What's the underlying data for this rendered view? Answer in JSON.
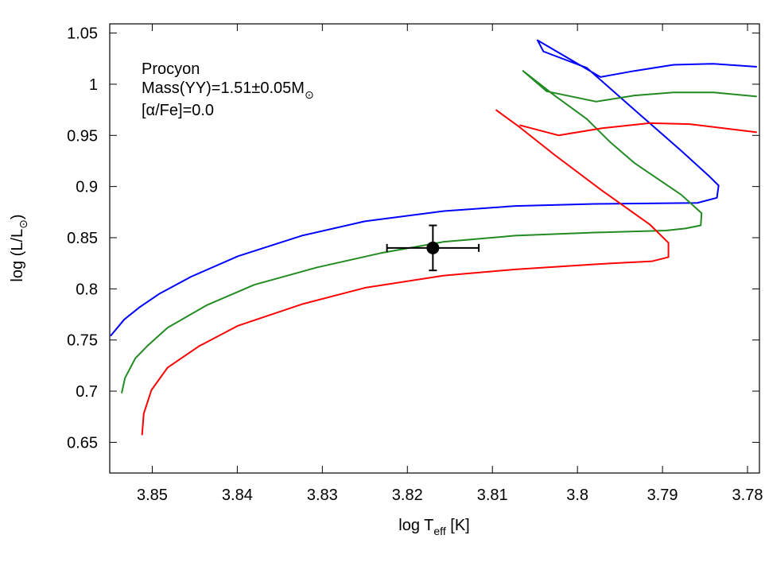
{
  "chart_data": {
    "type": "line",
    "xlabel": {
      "text": "log T",
      "sub": "eff",
      "after": " [K]"
    },
    "ylabel": {
      "text": "log (L/L",
      "sub": "⊙",
      "after": ")"
    },
    "annotations": [
      {
        "text": "Procyon"
      },
      {
        "text": "Mass(YY)=1.51±0.05M",
        "sub": "⊙"
      },
      {
        "text": "[α/Fe]=0.0"
      }
    ],
    "xlim": [
      3.855,
      3.7786
    ],
    "ylim": [
      0.62,
      1.059
    ],
    "xticks": [
      3.85,
      3.84,
      3.83,
      3.82,
      3.81,
      3.8,
      3.79,
      3.78
    ],
    "yticks": [
      0.65,
      0.7,
      0.75,
      0.8,
      0.85,
      0.9,
      0.95,
      1,
      1.05
    ],
    "series": [
      {
        "color": "#0000ff",
        "x": [
          3.8549,
          3.8533,
          3.8515,
          3.8492,
          3.8454,
          3.8399,
          3.8324,
          3.825,
          3.8157,
          3.8073,
          3.798,
          3.7859,
          3.7836,
          3.7834,
          3.7845,
          3.7878,
          3.7933,
          3.7989,
          3.804,
          3.8047,
          3.7973,
          3.7933,
          3.7887,
          3.784,
          3.7789
        ],
        "values": [
          0.754,
          0.77,
          0.782,
          0.795,
          0.812,
          0.832,
          0.852,
          0.866,
          0.876,
          0.881,
          0.883,
          0.884,
          0.889,
          0.901,
          0.91,
          0.935,
          0.975,
          1.016,
          1.032,
          1.043,
          1.007,
          1.013,
          1.019,
          1.02,
          1.017
        ]
      },
      {
        "color": "#228b22",
        "x": [
          3.8536,
          3.8532,
          3.852,
          3.8506,
          3.8482,
          3.8436,
          3.838,
          3.8306,
          3.8231,
          3.8157,
          3.8073,
          3.798,
          3.7896,
          3.7873,
          3.7855,
          3.7854,
          3.7878,
          3.7933,
          3.7961,
          3.7989,
          3.8027,
          3.8064,
          3.8036,
          3.7978,
          3.7933,
          3.7887,
          3.784,
          3.7789
        ],
        "values": [
          0.698,
          0.713,
          0.732,
          0.744,
          0.762,
          0.784,
          0.804,
          0.821,
          0.835,
          0.846,
          0.852,
          0.855,
          0.857,
          0.859,
          0.862,
          0.874,
          0.892,
          0.923,
          0.943,
          0.966,
          0.989,
          1.013,
          0.993,
          0.983,
          0.989,
          0.992,
          0.992,
          0.988
        ]
      },
      {
        "color": "#ff0000",
        "x": [
          3.8512,
          3.851,
          3.8501,
          3.8482,
          3.8445,
          3.8399,
          3.8324,
          3.825,
          3.8157,
          3.8073,
          3.798,
          3.7912,
          3.7893,
          3.7893,
          3.7915,
          3.7971,
          3.8027,
          3.8068,
          3.8096,
          null,
          3.8068,
          3.8022,
          3.7971,
          3.7915,
          3.7868,
          3.7789
        ],
        "values": [
          0.657,
          0.678,
          0.701,
          0.723,
          0.744,
          0.764,
          0.785,
          0.801,
          0.813,
          0.819,
          0.824,
          0.827,
          0.831,
          0.845,
          0.863,
          0.896,
          0.931,
          0.958,
          0.975,
          null,
          0.96,
          0.95,
          0.957,
          0.962,
          0.961,
          0.953
        ]
      }
    ],
    "point": {
      "x": 3.817,
      "y": 0.84,
      "xerr": 0.0054,
      "yerr": 0.022,
      "color": "#000000"
    }
  }
}
